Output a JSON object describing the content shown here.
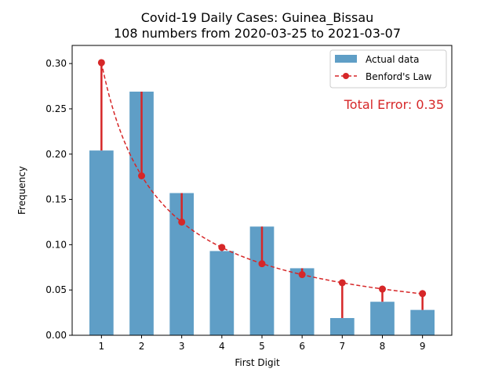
{
  "chart_data": {
    "type": "bar",
    "title_line1": "Covid-19 Daily Cases: Guinea_Bissau",
    "title_line2": "108 numbers from 2020-03-25 to 2021-03-07",
    "xlabel": "First Digit",
    "ylabel": "Frequency",
    "categories": [
      "1",
      "2",
      "3",
      "4",
      "5",
      "6",
      "7",
      "8",
      "9"
    ],
    "ylim": [
      0,
      0.32
    ],
    "yticks": [
      "0.00",
      "0.05",
      "0.10",
      "0.15",
      "0.20",
      "0.25",
      "0.30"
    ],
    "series": [
      {
        "name": "Actual data",
        "type": "bar",
        "color": "#5f9ec6",
        "values": [
          0.204,
          0.269,
          0.157,
          0.093,
          0.12,
          0.074,
          0.019,
          0.037,
          0.028
        ]
      },
      {
        "name": "Benford's Law",
        "type": "line",
        "color": "#d62728",
        "values": [
          0.301,
          0.176,
          0.125,
          0.097,
          0.079,
          0.067,
          0.058,
          0.051,
          0.046
        ]
      }
    ],
    "annotation": "Total Error: 0.35",
    "annotation_color": "#d62728",
    "legend_position": "upper right",
    "grid": false
  }
}
